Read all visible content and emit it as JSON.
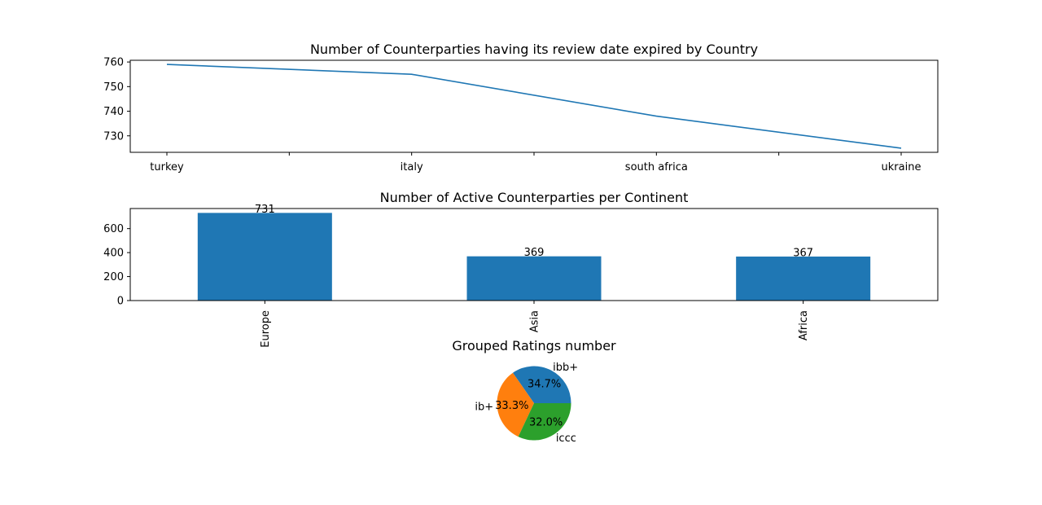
{
  "chart_data": [
    {
      "type": "line",
      "title": "Number of Counterparties having its review date expired by Country",
      "categories": [
        "turkey",
        "italy",
        "south africa",
        "ukraine"
      ],
      "values": [
        759,
        755,
        738,
        725
      ],
      "y_ticks": [
        730,
        740,
        750,
        760
      ],
      "ylim": [
        723.3,
        760.7
      ],
      "color": "#1f77b4",
      "grid": false
    },
    {
      "type": "bar",
      "title": "Number of Active Counterparties per Continent",
      "categories": [
        "Europe",
        "Asia",
        "Africa"
      ],
      "values": [
        731,
        369,
        367
      ],
      "y_ticks": [
        0,
        200,
        400,
        600
      ],
      "ylim": [
        0,
        767.6
      ],
      "color": "#1f77b4",
      "grid": false
    },
    {
      "type": "pie",
      "title": "Grouped Ratings number",
      "labels": [
        "ibb+",
        "ib+",
        "iccc"
      ],
      "values": [
        34.7,
        33.3,
        32.0
      ],
      "percent_labels": [
        "34.7%",
        "33.3%",
        "32.0%"
      ],
      "colors": [
        "#1f77b4",
        "#ff7f0e",
        "#2ca02c"
      ]
    }
  ]
}
